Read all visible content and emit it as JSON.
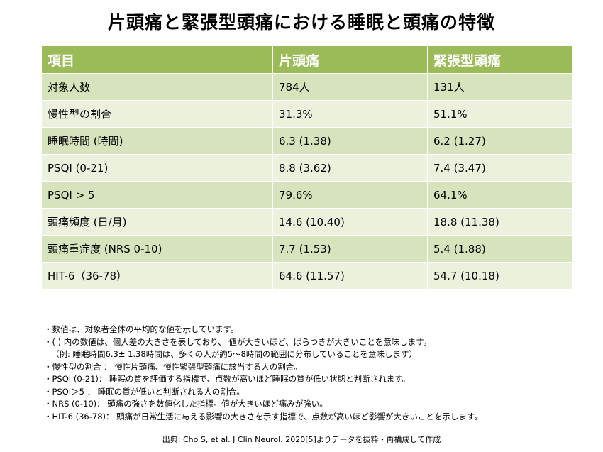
{
  "title": "片頭痛と緊張型頭痛における睡眠と頭痛の特徴",
  "table": {
    "headers": [
      "項目",
      "片頭痛",
      "緊張型頭痛"
    ],
    "rows": [
      [
        "対象人数",
        "784人",
        "131人"
      ],
      [
        "慢性型の割合",
        "31.3%",
        "51.1%"
      ],
      [
        "睡眠時間 (時間)",
        "6.3 (1.38)",
        "6.2 (1.27)"
      ],
      [
        "PSQI (0-21)",
        "8.8 (3.62)",
        "7.4 (3.47)"
      ],
      [
        "PSQI > 5",
        "79.6%",
        "64.1%"
      ],
      [
        "頭痛頻度 (日/月)",
        "14.6 (10.40)",
        "18.8 (11.38)"
      ],
      [
        "頭痛重症度 (NRS 0-10)",
        "7.7 (1.53)",
        "5.4 (1.88)"
      ],
      [
        "HIT-6（36-78）",
        "64.6 (11.57)",
        "54.7 (10.18)"
      ]
    ]
  },
  "notes": [
    "・数値は、対象者全体の平均的な値を示しています。",
    "・( ) 内の数値は、個人差の大きさを表しており、 値が大きいほど、ばらつきが大きいことを意味します。",
    "（例: 睡眠時間6.3± 1.38時間は、多くの人が約5〜8時間の範囲に分布していることを意味します）",
    "・慢性型の割合 ： 慢性片頭痛、慢性緊張型頭痛に該当する人の割合。",
    "・PSQI (0-21)： 睡眠の質を評価する指標で、点数が高いほど睡眠の質が低い状態と判断されます。",
    "・PSQI＞5 ： 睡眠の質が低いと判断される人の割合。",
    "・NRS (0-10)： 頭痛の強さを数値化した指標。値が大きいほど痛みが強い。",
    "・HIT-6 (36-78)： 頭痛が日常生活に与える影響の大きさを示す指標で、点数が高いほど影響が大きいことを示します。"
  ],
  "source": "出典: Cho S, et al. J Clin Neurol. 2020[5]よりデータを抜粋・再構成して作成",
  "colors": {
    "header_bg": "#9bbb59",
    "row_odd": "#d7e3bc",
    "row_even": "#ebf1dd"
  }
}
